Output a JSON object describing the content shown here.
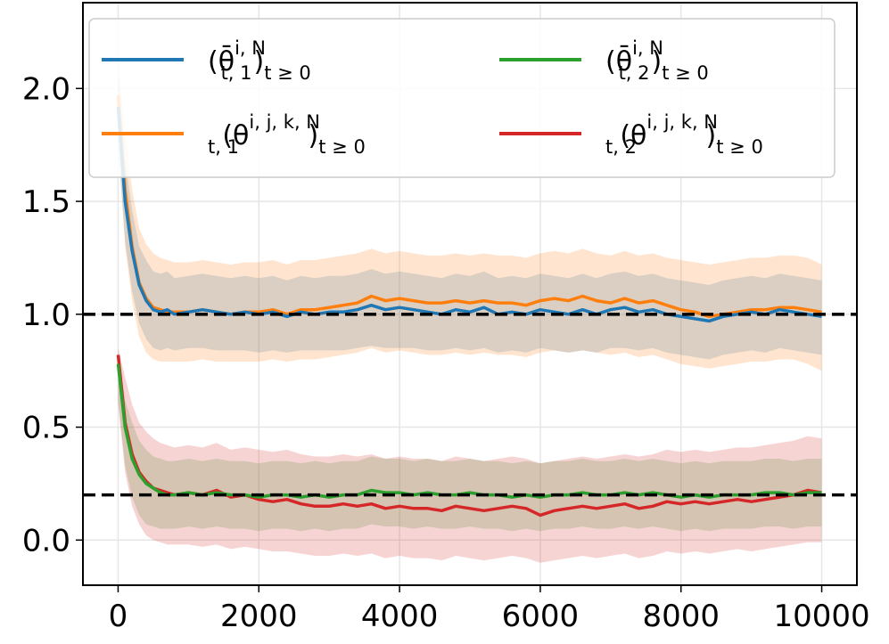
{
  "chart_data": {
    "type": "line",
    "title": "",
    "xlabel": "",
    "ylabel": "",
    "xlim": [
      -500,
      10500
    ],
    "ylim": [
      -0.2,
      2.38
    ],
    "xticks": [
      0,
      2000,
      4000,
      6000,
      8000,
      10000
    ],
    "xtick_labels": [
      "0",
      "2000",
      "4000",
      "6000",
      "8000",
      "10000"
    ],
    "yticks": [
      0.0,
      0.5,
      1.0,
      1.5,
      2.0
    ],
    "ytick_labels": [
      "0.0",
      "0.5",
      "1.0",
      "1.5",
      "2.0"
    ],
    "grid": true,
    "reference_lines": [
      {
        "y": 1.0,
        "style": "dashed",
        "color": "#000000"
      },
      {
        "y": 0.2,
        "style": "dashed",
        "color": "#000000"
      }
    ],
    "legend": {
      "placement": "top",
      "columns": 2,
      "entries": [
        {
          "series": 0,
          "base": "(θ̄",
          "sup": "i, N",
          "sub": "t, 1",
          "tail": ")",
          "tail_sub": "t ≥ 0"
        },
        {
          "series": 2,
          "base": "(θ̄",
          "sup": "i, N",
          "sub": "t, 2",
          "tail": ")",
          "tail_sub": "t ≥ 0"
        },
        {
          "series": 1,
          "base": "(θ",
          "sup": "i, j, k, N",
          "sub": "t, 1",
          "tail": ")",
          "tail_sub": "t ≥ 0"
        },
        {
          "series": 3,
          "base": "(θ",
          "sup": "i, j, k, N",
          "sub": "t, 2",
          "tail": ")",
          "tail_sub": "t ≥ 0"
        }
      ]
    },
    "x": [
      0,
      100,
      200,
      300,
      400,
      500,
      600,
      700,
      800,
      1000,
      1200,
      1400,
      1600,
      1800,
      2000,
      2200,
      2400,
      2600,
      2800,
      3000,
      3200,
      3400,
      3600,
      3800,
      4000,
      4200,
      4400,
      4600,
      4800,
      5000,
      5200,
      5400,
      5600,
      5800,
      6000,
      6200,
      6400,
      6600,
      6800,
      7000,
      7200,
      7400,
      7600,
      7800,
      8000,
      8200,
      8400,
      8600,
      8800,
      9000,
      9200,
      9400,
      9600,
      9800,
      10000
    ],
    "series": [
      {
        "name": "theta_bar_1",
        "color": "#1f77b4",
        "values": [
          1.92,
          1.5,
          1.28,
          1.13,
          1.06,
          1.02,
          1.01,
          1.02,
          1.0,
          1.01,
          1.02,
          1.01,
          1.0,
          1.01,
          1.0,
          1.01,
          0.99,
          1.01,
          1.0,
          1.01,
          1.01,
          1.02,
          1.04,
          1.02,
          1.03,
          1.02,
          1.01,
          1.0,
          1.02,
          1.01,
          1.03,
          1.0,
          1.01,
          1.0,
          1.02,
          1.01,
          1.0,
          1.02,
          1.0,
          1.02,
          1.03,
          1.01,
          1.02,
          1.0,
          0.99,
          0.98,
          0.97,
          0.99,
          1.0,
          1.01,
          1.0,
          1.02,
          1.01,
          1.0,
          0.99
        ],
        "lower": [
          1.74,
          1.32,
          1.1,
          0.96,
          0.89,
          0.85,
          0.84,
          0.85,
          0.84,
          0.85,
          0.85,
          0.84,
          0.84,
          0.84,
          0.83,
          0.84,
          0.83,
          0.84,
          0.84,
          0.84,
          0.84,
          0.85,
          0.86,
          0.85,
          0.85,
          0.85,
          0.84,
          0.84,
          0.85,
          0.84,
          0.85,
          0.83,
          0.84,
          0.83,
          0.85,
          0.84,
          0.83,
          0.84,
          0.83,
          0.85,
          0.85,
          0.84,
          0.85,
          0.83,
          0.82,
          0.81,
          0.8,
          0.82,
          0.83,
          0.84,
          0.83,
          0.85,
          0.84,
          0.83,
          0.82
        ],
        "upper": [
          2.08,
          1.68,
          1.46,
          1.3,
          1.24,
          1.19,
          1.18,
          1.19,
          1.16,
          1.17,
          1.18,
          1.17,
          1.16,
          1.17,
          1.16,
          1.17,
          1.15,
          1.17,
          1.16,
          1.17,
          1.17,
          1.18,
          1.2,
          1.18,
          1.19,
          1.18,
          1.17,
          1.16,
          1.18,
          1.17,
          1.19,
          1.16,
          1.17,
          1.16,
          1.18,
          1.17,
          1.16,
          1.18,
          1.16,
          1.18,
          1.19,
          1.17,
          1.18,
          1.16,
          1.15,
          1.14,
          1.13,
          1.15,
          1.16,
          1.17,
          1.16,
          1.18,
          1.17,
          1.16,
          1.15
        ]
      },
      {
        "name": "theta_ijk_1",
        "color": "#ff7f0e",
        "values": [
          1.97,
          1.55,
          1.3,
          1.14,
          1.07,
          1.03,
          1.02,
          1.01,
          1.01,
          1.01,
          1.02,
          1.01,
          1.0,
          1.01,
          1.01,
          1.02,
          1.0,
          1.02,
          1.02,
          1.03,
          1.04,
          1.05,
          1.08,
          1.06,
          1.07,
          1.06,
          1.05,
          1.05,
          1.06,
          1.05,
          1.06,
          1.05,
          1.05,
          1.04,
          1.06,
          1.07,
          1.06,
          1.08,
          1.06,
          1.05,
          1.07,
          1.05,
          1.06,
          1.04,
          1.02,
          1.01,
          0.99,
          1.0,
          1.01,
          1.02,
          1.02,
          1.03,
          1.03,
          1.02,
          1.01
        ],
        "lower": [
          1.78,
          1.3,
          1.06,
          0.9,
          0.83,
          0.8,
          0.79,
          0.79,
          0.79,
          0.79,
          0.8,
          0.79,
          0.79,
          0.79,
          0.79,
          0.8,
          0.79,
          0.8,
          0.8,
          0.81,
          0.82,
          0.83,
          0.85,
          0.83,
          0.84,
          0.83,
          0.82,
          0.82,
          0.83,
          0.82,
          0.83,
          0.82,
          0.82,
          0.81,
          0.83,
          0.84,
          0.83,
          0.84,
          0.83,
          0.82,
          0.83,
          0.81,
          0.82,
          0.8,
          0.78,
          0.77,
          0.76,
          0.77,
          0.78,
          0.79,
          0.79,
          0.8,
          0.8,
          0.78,
          0.75
        ],
        "upper": [
          2.12,
          1.8,
          1.55,
          1.38,
          1.31,
          1.27,
          1.25,
          1.24,
          1.23,
          1.23,
          1.24,
          1.23,
          1.22,
          1.23,
          1.23,
          1.24,
          1.22,
          1.24,
          1.24,
          1.25,
          1.26,
          1.27,
          1.29,
          1.27,
          1.28,
          1.27,
          1.26,
          1.26,
          1.27,
          1.26,
          1.27,
          1.26,
          1.26,
          1.25,
          1.27,
          1.28,
          1.27,
          1.29,
          1.27,
          1.26,
          1.28,
          1.26,
          1.27,
          1.25,
          1.24,
          1.23,
          1.22,
          1.23,
          1.24,
          1.25,
          1.25,
          1.26,
          1.26,
          1.25,
          1.22
        ]
      },
      {
        "name": "theta_bar_2",
        "color": "#2ca02c",
        "values": [
          0.78,
          0.5,
          0.36,
          0.29,
          0.25,
          0.23,
          0.21,
          0.2,
          0.2,
          0.21,
          0.2,
          0.21,
          0.2,
          0.2,
          0.19,
          0.2,
          0.2,
          0.19,
          0.2,
          0.19,
          0.2,
          0.2,
          0.22,
          0.21,
          0.21,
          0.2,
          0.21,
          0.2,
          0.2,
          0.21,
          0.2,
          0.2,
          0.19,
          0.2,
          0.19,
          0.2,
          0.2,
          0.21,
          0.2,
          0.2,
          0.21,
          0.2,
          0.21,
          0.2,
          0.19,
          0.2,
          0.19,
          0.2,
          0.2,
          0.2,
          0.21,
          0.21,
          0.2,
          0.21,
          0.21
        ],
        "lower": [
          0.62,
          0.33,
          0.19,
          0.11,
          0.07,
          0.06,
          0.05,
          0.05,
          0.05,
          0.06,
          0.05,
          0.06,
          0.05,
          0.05,
          0.04,
          0.05,
          0.05,
          0.04,
          0.05,
          0.04,
          0.05,
          0.05,
          0.07,
          0.06,
          0.06,
          0.05,
          0.06,
          0.05,
          0.05,
          0.06,
          0.05,
          0.05,
          0.04,
          0.05,
          0.04,
          0.05,
          0.05,
          0.06,
          0.05,
          0.05,
          0.06,
          0.05,
          0.06,
          0.05,
          0.04,
          0.05,
          0.04,
          0.05,
          0.05,
          0.05,
          0.06,
          0.06,
          0.05,
          0.06,
          0.06
        ],
        "upper": [
          0.84,
          0.62,
          0.52,
          0.44,
          0.4,
          0.37,
          0.36,
          0.35,
          0.35,
          0.36,
          0.35,
          0.36,
          0.35,
          0.35,
          0.34,
          0.35,
          0.35,
          0.34,
          0.35,
          0.34,
          0.35,
          0.35,
          0.37,
          0.36,
          0.36,
          0.35,
          0.36,
          0.35,
          0.35,
          0.36,
          0.35,
          0.35,
          0.34,
          0.35,
          0.34,
          0.35,
          0.35,
          0.36,
          0.35,
          0.35,
          0.36,
          0.35,
          0.36,
          0.35,
          0.34,
          0.35,
          0.34,
          0.35,
          0.35,
          0.35,
          0.36,
          0.36,
          0.35,
          0.36,
          0.36
        ]
      },
      {
        "name": "theta_ijk_2",
        "color": "#d62728",
        "values": [
          0.82,
          0.52,
          0.38,
          0.3,
          0.26,
          0.23,
          0.22,
          0.21,
          0.2,
          0.21,
          0.2,
          0.22,
          0.19,
          0.2,
          0.18,
          0.17,
          0.18,
          0.16,
          0.15,
          0.15,
          0.16,
          0.15,
          0.16,
          0.14,
          0.15,
          0.14,
          0.14,
          0.13,
          0.15,
          0.14,
          0.13,
          0.14,
          0.15,
          0.14,
          0.11,
          0.13,
          0.14,
          0.15,
          0.14,
          0.15,
          0.16,
          0.14,
          0.15,
          0.17,
          0.16,
          0.17,
          0.16,
          0.17,
          0.18,
          0.17,
          0.18,
          0.19,
          0.2,
          0.22,
          0.21
        ],
        "lower": [
          0.6,
          0.3,
          0.15,
          0.07,
          0.02,
          0.0,
          -0.01,
          -0.02,
          -0.02,
          -0.02,
          -0.03,
          -0.02,
          -0.04,
          -0.03,
          -0.04,
          -0.05,
          -0.05,
          -0.06,
          -0.07,
          -0.07,
          -0.06,
          -0.07,
          -0.06,
          -0.08,
          -0.07,
          -0.08,
          -0.08,
          -0.09,
          -0.07,
          -0.08,
          -0.09,
          -0.08,
          -0.07,
          -0.08,
          -0.1,
          -0.09,
          -0.08,
          -0.07,
          -0.08,
          -0.07,
          -0.06,
          -0.08,
          -0.07,
          -0.05,
          -0.06,
          -0.05,
          -0.06,
          -0.05,
          -0.04,
          -0.05,
          -0.04,
          -0.03,
          -0.02,
          -0.01,
          -0.01
        ],
        "upper": [
          0.85,
          0.72,
          0.6,
          0.52,
          0.48,
          0.45,
          0.43,
          0.42,
          0.41,
          0.42,
          0.41,
          0.43,
          0.4,
          0.41,
          0.4,
          0.39,
          0.4,
          0.38,
          0.37,
          0.37,
          0.38,
          0.37,
          0.38,
          0.36,
          0.37,
          0.36,
          0.36,
          0.35,
          0.37,
          0.36,
          0.35,
          0.36,
          0.37,
          0.36,
          0.34,
          0.35,
          0.36,
          0.37,
          0.36,
          0.37,
          0.38,
          0.37,
          0.38,
          0.4,
          0.39,
          0.4,
          0.39,
          0.4,
          0.41,
          0.41,
          0.42,
          0.43,
          0.44,
          0.46,
          0.45
        ]
      }
    ]
  }
}
